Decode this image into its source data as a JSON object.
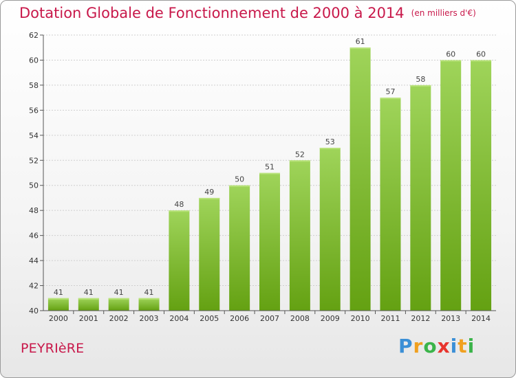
{
  "header": {
    "title": "Dotation Globale de Fonctionnement de 2000 à 2014",
    "unit": "(en milliers d'€)"
  },
  "footer": {
    "commune": "PEYRIèRE",
    "logo_letters": [
      "P",
      "r",
      "o",
      "x",
      "i",
      "t",
      "i"
    ],
    "logo_colors": [
      "#3b8fd6",
      "#f0a020",
      "#3bb44a",
      "#e8352e",
      "#3b8fd6",
      "#f0a020",
      "#3bb44a"
    ]
  },
  "chart_data": {
    "type": "bar",
    "categories": [
      "2000",
      "2001",
      "2002",
      "2003",
      "2004",
      "2005",
      "2006",
      "2007",
      "2008",
      "2009",
      "2010",
      "2011",
      "2012",
      "2013",
      "2014"
    ],
    "values": [
      41,
      41,
      41,
      41,
      48,
      49,
      50,
      51,
      52,
      53,
      61,
      57,
      58,
      60,
      60
    ],
    "title": "Dotation Globale de Fonctionnement de 2000 à 2014",
    "subtitle": "(en milliers d'€)",
    "xlabel": "",
    "ylabel": "",
    "ylim": [
      40,
      62
    ],
    "yticks": [
      40,
      42,
      44,
      46,
      48,
      50,
      52,
      54,
      56,
      58,
      60,
      62
    ],
    "grid": true,
    "legend": "none",
    "bar_color": "#8cc63f"
  }
}
